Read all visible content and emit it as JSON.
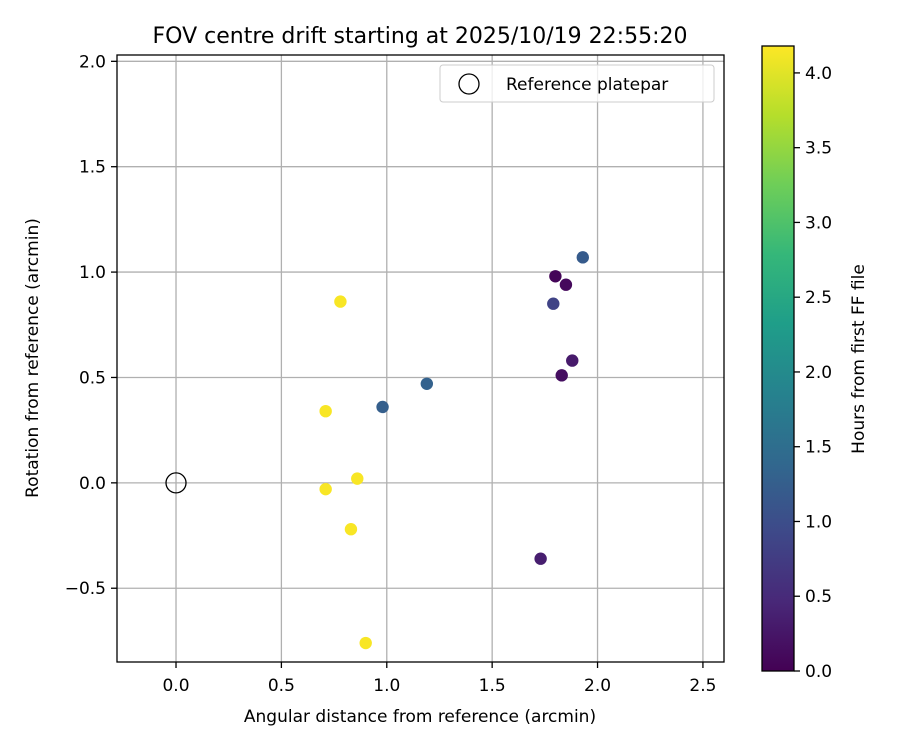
{
  "chart_data": {
    "type": "scatter",
    "title": "FOV centre drift starting at 2025/10/19 22:55:20",
    "xlabel": "Angular distance from reference (arcmin)",
    "ylabel": "Rotation from reference (arcmin)",
    "xlim": [
      -0.28,
      2.6
    ],
    "ylim": [
      -0.85,
      2.03
    ],
    "xticks": [
      0.0,
      0.5,
      1.0,
      1.5,
      2.0,
      2.5
    ],
    "xtick_labels": [
      "0.0",
      "0.5",
      "1.0",
      "1.5",
      "2.0",
      "2.5"
    ],
    "yticks": [
      -0.5,
      0.0,
      0.5,
      1.0,
      1.5,
      2.0
    ],
    "ytick_labels": [
      "−0.5",
      "0.0",
      "0.5",
      "1.0",
      "1.5",
      "2.0"
    ],
    "grid": true,
    "legend": {
      "location": "top-right",
      "entries": [
        "Reference platepar"
      ]
    },
    "reference_point": {
      "x": 0.0,
      "y": 0.0,
      "marker": "open-circle"
    },
    "colorbar": {
      "label": "Hours from first FF file",
      "colormap": "viridis",
      "range": [
        0.0,
        4.18
      ],
      "ticks": [
        0.0,
        0.5,
        1.0,
        1.5,
        2.0,
        2.5,
        3.0,
        3.5,
        4.0
      ],
      "tick_labels": [
        "0.0",
        "0.5",
        "1.0",
        "1.5",
        "2.0",
        "2.5",
        "3.0",
        "3.5",
        "4.0"
      ]
    },
    "points": [
      {
        "x": 1.8,
        "y": 0.98,
        "hours": 0.05
      },
      {
        "x": 1.85,
        "y": 0.94,
        "hours": 0.1
      },
      {
        "x": 1.83,
        "y": 0.51,
        "hours": 0.15
      },
      {
        "x": 1.88,
        "y": 0.58,
        "hours": 0.3
      },
      {
        "x": 1.73,
        "y": -0.36,
        "hours": 0.35
      },
      {
        "x": 1.79,
        "y": 0.85,
        "hours": 0.85
      },
      {
        "x": 1.93,
        "y": 1.07,
        "hours": 1.2
      },
      {
        "x": 0.98,
        "y": 0.36,
        "hours": 1.25
      },
      {
        "x": 1.19,
        "y": 0.47,
        "hours": 1.3
      },
      {
        "x": 0.78,
        "y": 0.86,
        "hours": 4.15
      },
      {
        "x": 0.71,
        "y": 0.34,
        "hours": 4.15
      },
      {
        "x": 0.71,
        "y": -0.03,
        "hours": 4.15
      },
      {
        "x": 0.86,
        "y": 0.02,
        "hours": 4.15
      },
      {
        "x": 0.83,
        "y": -0.22,
        "hours": 4.15
      },
      {
        "x": 0.9,
        "y": -0.76,
        "hours": 4.15
      }
    ]
  }
}
